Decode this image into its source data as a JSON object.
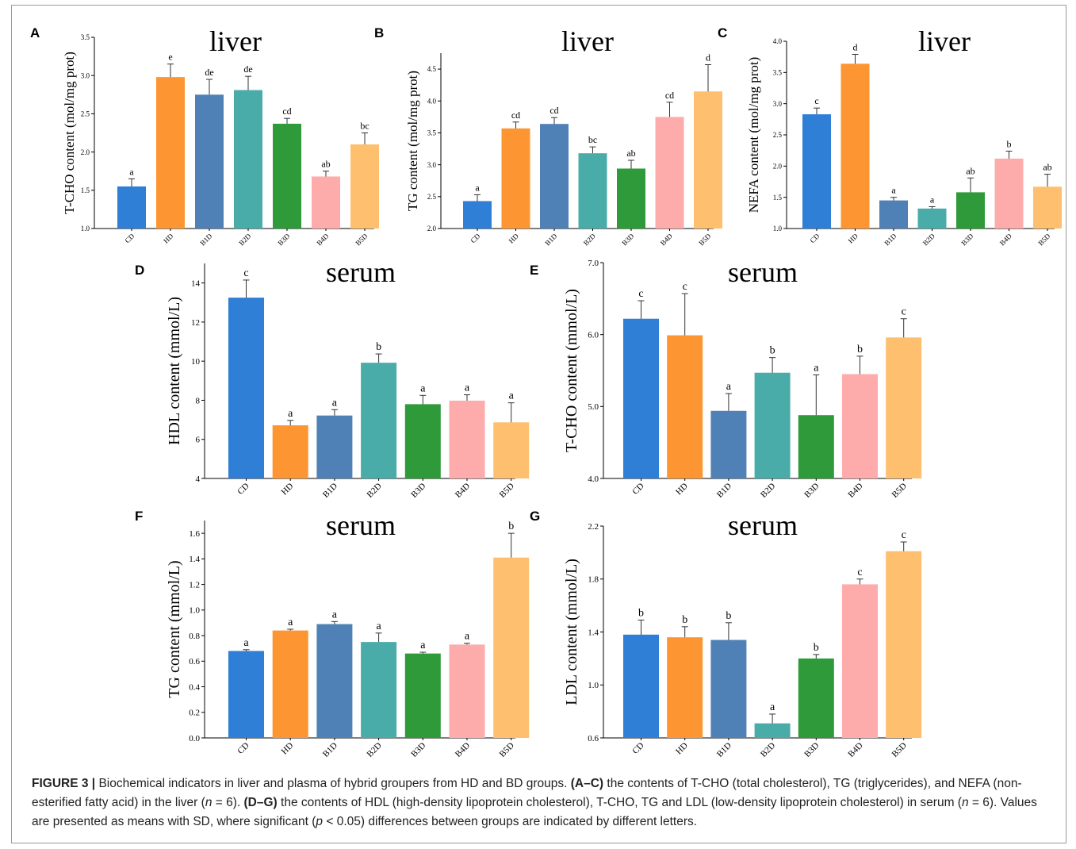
{
  "colors": [
    "#2f7fd6",
    "#fd9632",
    "#5081b6",
    "#4aaca9",
    "#2f9a3a",
    "#feabab",
    "#fec06e"
  ],
  "panel_letters": [
    "A",
    "B",
    "C",
    "D",
    "E",
    "F",
    "G"
  ],
  "chart_data": [
    {
      "letter": "A",
      "type": "bar",
      "title": "liver",
      "ylabel": "T-CHO content (mol/mg prot)",
      "xlabel": "",
      "categories": [
        "CD",
        "HD",
        "B1D",
        "B2D",
        "B3D",
        "B4D",
        "B5D"
      ],
      "values": [
        1.55,
        2.98,
        2.75,
        2.81,
        2.37,
        1.68,
        2.1
      ],
      "sd": [
        0.1,
        0.17,
        0.2,
        0.18,
        0.07,
        0.07,
        0.15
      ],
      "sig": [
        "a",
        "e",
        "de",
        "de",
        "cd",
        "ab",
        "bc"
      ],
      "ylim": [
        1.0,
        3.5
      ],
      "yticks": [
        "1.0",
        "1.5",
        "2.0",
        "2.5",
        "3.0",
        "3.5"
      ]
    },
    {
      "letter": "B",
      "type": "bar",
      "title": "liver",
      "ylabel": "TG content (mol/mg prot)",
      "xlabel": "",
      "categories": [
        "CD",
        "HD",
        "B1D",
        "B2D",
        "B3D",
        "B4D",
        "B5D"
      ],
      "values": [
        2.43,
        3.57,
        3.64,
        3.18,
        2.94,
        3.75,
        4.15
      ],
      "sd": [
        0.1,
        0.1,
        0.1,
        0.1,
        0.13,
        0.23,
        0.42
      ],
      "sig": [
        "a",
        "cd",
        "cd",
        "bc",
        "ab",
        "cd",
        "d"
      ],
      "ylim": [
        2.0,
        4.75
      ],
      "yticks": [
        "2.0",
        "2.5",
        "3.0",
        "3.5",
        "4.0",
        "4.5"
      ]
    },
    {
      "letter": "C",
      "type": "bar",
      "title": "liver",
      "ylabel": "NEFA content (mol/mg prot)",
      "xlabel": "",
      "categories": [
        "CD",
        "HD",
        "B1D",
        "B2D",
        "B3D",
        "B4D",
        "B5D"
      ],
      "values": [
        2.83,
        3.64,
        1.45,
        1.32,
        1.58,
        2.12,
        1.67
      ],
      "sd": [
        0.1,
        0.15,
        0.05,
        0.03,
        0.23,
        0.12,
        0.2
      ],
      "sig": [
        "c",
        "d",
        "a",
        "a",
        "ab",
        "b",
        "ab"
      ],
      "ylim": [
        1.0,
        4.0
      ],
      "yticks": [
        "1.0",
        "1.5",
        "2.0",
        "2.5",
        "3.0",
        "3.5",
        "4.0"
      ]
    },
    {
      "letter": "D",
      "type": "bar",
      "title": "serum",
      "ylabel": "HDL content (mmol/L)",
      "xlabel": "",
      "categories": [
        "CD",
        "HD",
        "B1D",
        "B2D",
        "B3D",
        "B4D",
        "B5D"
      ],
      "values": [
        13.25,
        6.72,
        7.22,
        9.92,
        7.8,
        7.98,
        6.87
      ],
      "sd": [
        0.9,
        0.25,
        0.3,
        0.45,
        0.45,
        0.3,
        1.0
      ],
      "sig": [
        "c",
        "a",
        "a",
        "b",
        "a",
        "a",
        "a"
      ],
      "ylim": [
        4,
        15
      ],
      "yticks": [
        "4",
        "6",
        "8",
        "10",
        "12",
        "14"
      ]
    },
    {
      "letter": "E",
      "type": "bar",
      "title": "serum",
      "ylabel": "T-CHO content (mmol/L)",
      "xlabel": "",
      "categories": [
        "CD",
        "HD",
        "B1D",
        "B2D",
        "B3D",
        "B4D",
        "B5D"
      ],
      "values": [
        6.22,
        5.99,
        4.94,
        5.47,
        4.88,
        5.45,
        5.96
      ],
      "sd": [
        0.25,
        0.58,
        0.24,
        0.21,
        0.56,
        0.25,
        0.26
      ],
      "sig": [
        "c",
        "c",
        "a",
        "b",
        "a",
        "b",
        "c"
      ],
      "ylim": [
        4.0,
        7.0
      ],
      "yticks": [
        "4.0",
        "5.0",
        "6.0",
        "7.0"
      ]
    },
    {
      "letter": "F",
      "type": "bar",
      "title": "serum",
      "ylabel": "TG content (mmol/L)",
      "xlabel": "",
      "categories": [
        "CD",
        "HD",
        "B1D",
        "B2D",
        "B3D",
        "B4D",
        "B5D"
      ],
      "values": [
        0.68,
        0.84,
        0.89,
        0.75,
        0.66,
        0.73,
        1.41
      ],
      "sd": [
        0.01,
        0.01,
        0.02,
        0.07,
        0.01,
        0.01,
        0.19
      ],
      "sig": [
        "a",
        "a",
        "a",
        "a",
        "a",
        "a",
        "b"
      ],
      "ylim": [
        0,
        1.7
      ],
      "yticks": [
        "0.0",
        "0.2",
        "0.4",
        "0.6",
        "0.8",
        "1.0",
        "1.2",
        "1.4",
        "1.6"
      ]
    },
    {
      "letter": "G",
      "type": "bar",
      "title": "serum",
      "ylabel": "LDL content (mmol/L)",
      "xlabel": "",
      "categories": [
        "CD",
        "HD",
        "B1D",
        "B2D",
        "B3D",
        "B4D",
        "B5D"
      ],
      "values": [
        1.38,
        1.36,
        1.34,
        0.71,
        1.2,
        1.76,
        2.01
      ],
      "sd": [
        0.11,
        0.08,
        0.13,
        0.07,
        0.03,
        0.04,
        0.07
      ],
      "sig": [
        "b",
        "b",
        "b",
        "a",
        "b",
        "c",
        "c"
      ],
      "ylim": [
        0.6,
        2.2
      ],
      "yticks": [
        "0.6",
        "1.0",
        "1.4",
        "1.8",
        "2.2"
      ]
    }
  ],
  "caption": {
    "label": "FIGURE 3 |",
    "s1": "Biochemical indicators in liver and plasma of hybrid groupers from HD and BD groups.",
    "b1": "(A–C)",
    "s2": "the contents of T-CHO (total cholesterol), TG (triglycerides), and NEFA (non-esterified fatty acid) in the liver (",
    "n1": "n",
    "s3": "= 6).",
    "b2": "(D–G)",
    "s4": "the contents of HDL (high-density lipoprotein cholesterol), T-CHO, TG and LDL (low-density lipoprotein cholesterol) in serum (",
    "n2": "n",
    "s5": "= 6). Values are presented as means with SD, where significant (",
    "p": "p",
    "s6": "< 0.05) differences between groups are indicated by different letters."
  }
}
